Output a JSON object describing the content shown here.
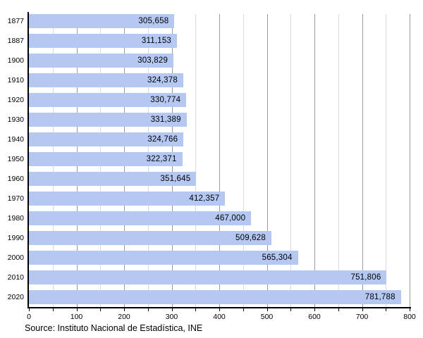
{
  "chart_data": {
    "type": "bar",
    "orientation": "horizontal",
    "title": "",
    "xlabel": "",
    "ylabel": "",
    "categories": [
      "1877",
      "1887",
      "1900",
      "1910",
      "1920",
      "1930",
      "1940",
      "1950",
      "1960",
      "1970",
      "1980",
      "1990",
      "2000",
      "2010",
      "2020"
    ],
    "values": [
      305658,
      311153,
      303829,
      324378,
      330774,
      331389,
      324766,
      322371,
      351645,
      412357,
      467000,
      509628,
      565304,
      751806,
      781788
    ],
    "value_labels": [
      "305,658",
      "311,153",
      "303,829",
      "324,378",
      "330,774",
      "331,389",
      "324,766",
      "322,371",
      "351,645",
      "412,357",
      "467,000",
      "509,628",
      "565,304",
      "751,806",
      "781,788"
    ],
    "xlim": [
      0,
      800000
    ],
    "x_axis_unit": "thousands",
    "x_tick_labels": [
      "0",
      "100",
      "200",
      "300",
      "400",
      "500",
      "600",
      "700",
      "800"
    ],
    "x_label_step": 100000,
    "x_grid_step": 50000,
    "grid": "vertical, minor every 50k (light), major every 100k (dark)",
    "legend": "none",
    "source": "Source: Instituto Nacional de Estadística, INE",
    "colors": {
      "bar_fill": "#b4c8f2",
      "grid_minor": "#dcdcdc",
      "grid_major": "#9a9a9a",
      "axis": "#000000",
      "text": "#000000"
    }
  }
}
